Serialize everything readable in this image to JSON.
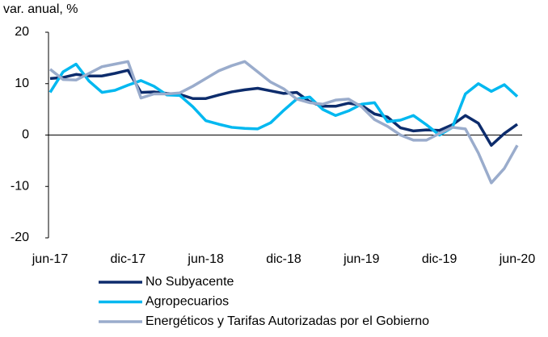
{
  "chart_data": {
    "type": "line",
    "y_label": "var. anual, %",
    "categories": [
      "jun-17",
      null,
      null,
      null,
      null,
      null,
      "dic-17",
      null,
      null,
      null,
      null,
      null,
      "jun-18",
      null,
      null,
      null,
      null,
      null,
      "dic-18",
      null,
      null,
      null,
      null,
      null,
      "jun-19",
      null,
      null,
      null,
      null,
      null,
      "dic-19",
      null,
      null,
      null,
      null,
      null,
      "jun-20"
    ],
    "series": [
      {
        "name": "No Subyacente",
        "color": "#0d2c6c",
        "values": [
          11,
          11.2,
          11.8,
          11.5,
          11.5,
          12,
          12.6,
          8.3,
          8.4,
          8.1,
          7.9,
          7.1,
          7.1,
          7.8,
          8.4,
          8.8,
          9.1,
          8.6,
          8.1,
          8.3,
          6.5,
          5.6,
          5.6,
          6.2,
          5.8,
          4.1,
          3.5,
          1.4,
          0.8,
          1.0,
          0.9,
          2.0,
          3.8,
          2.3,
          -2.0,
          0.3,
          2.1
        ]
      },
      {
        "name": "Agropecuarios",
        "color": "#00b8f0",
        "values": [
          8.3,
          12.3,
          13.8,
          10.5,
          8.3,
          8.7,
          9.7,
          10.6,
          9.5,
          7.8,
          7.7,
          5.5,
          2.8,
          2.1,
          1.5,
          1.3,
          1.2,
          2.4,
          4.8,
          7.0,
          7.4,
          5.0,
          3.8,
          4.7,
          6.0,
          6.3,
          2.6,
          2.9,
          3.8,
          2.0,
          0.0,
          1.5,
          8.0,
          10.0,
          8.5,
          9.8,
          7.5
        ]
      },
      {
        "name": "Energéticos y Tarifas Autorizadas por el Gobierno",
        "color": "#9aaccc",
        "values": [
          12.8,
          10.8,
          10.7,
          12.0,
          13.3,
          13.8,
          14.3,
          7.2,
          8.0,
          8.0,
          8.2,
          9.5,
          11.0,
          12.5,
          13.5,
          14.3,
          12.3,
          10.3,
          9.0,
          7.0,
          6.3,
          6.0,
          6.8,
          7.0,
          5.5,
          3.0,
          1.7,
          0.0,
          -1.0,
          -1.0,
          0.3,
          1.5,
          1.2,
          -3.5,
          -9.3,
          -6.5,
          -2.0
        ]
      }
    ],
    "ylim": [
      -20,
      20
    ],
    "yticks": [
      -20,
      -10,
      0,
      10,
      20
    ]
  }
}
